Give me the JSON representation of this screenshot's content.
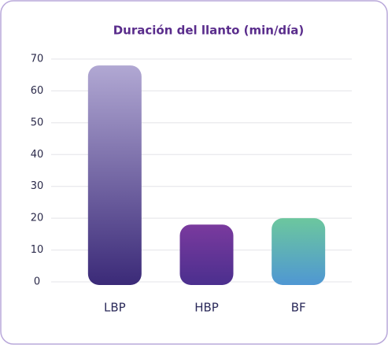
{
  "chart_data": {
    "type": "bar",
    "title": "Duración del llanto (min/día)",
    "categories": [
      "LBP",
      "HBP",
      "BF"
    ],
    "values": [
      68,
      18,
      20
    ],
    "colors": [
      [
        "#b1a8d3",
        "#3b2a78"
      ],
      [
        "#7a3a9e",
        "#4b2f8e"
      ],
      [
        "#6cc79e",
        "#4f97d3"
      ]
    ],
    "ylim": [
      0,
      70
    ],
    "yticks": [
      0,
      10,
      20,
      30,
      40,
      50,
      60,
      70
    ],
    "grid": true
  }
}
